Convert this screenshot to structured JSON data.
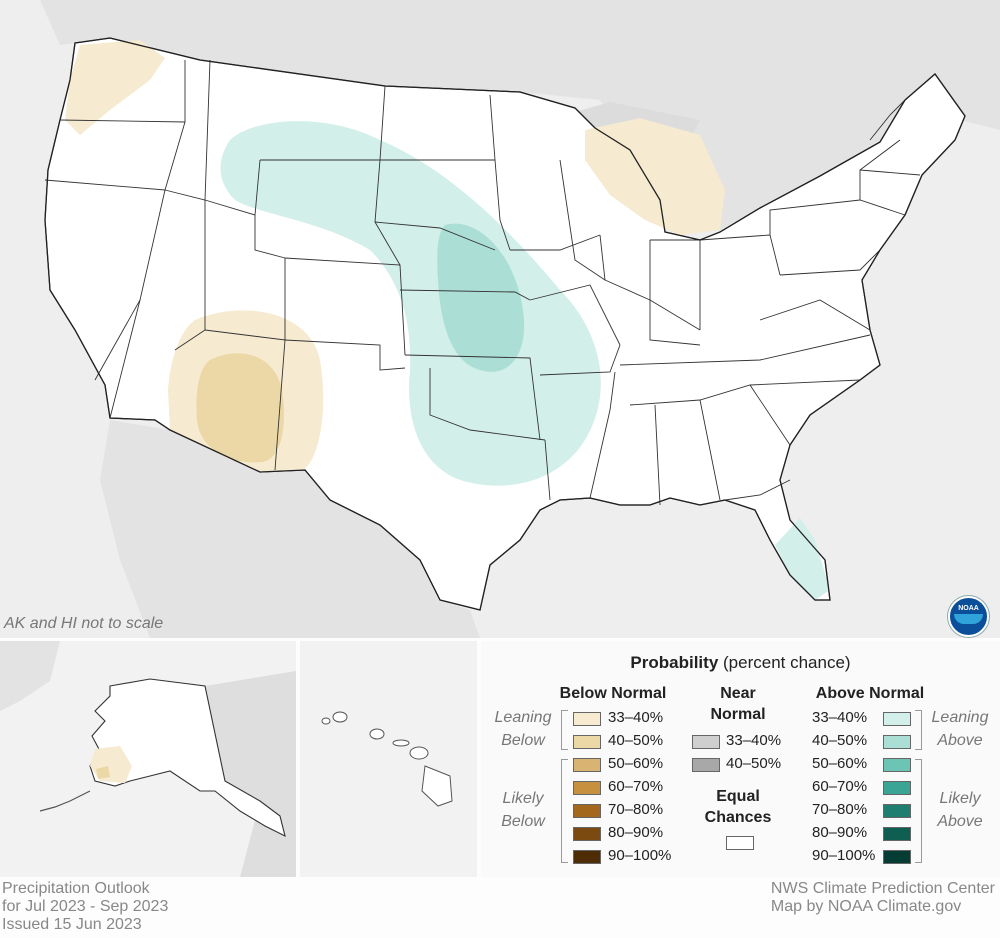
{
  "map": {
    "inset_note": "AK and HI not to scale",
    "logo_text": "NOAA"
  },
  "legend": {
    "title_bold": "Probability",
    "title_rest": " (percent chance)",
    "below": {
      "header": "Below Normal",
      "leaning_label": [
        "Leaning",
        "Below"
      ],
      "likely_label": [
        "Likely",
        "Below"
      ],
      "rows": [
        {
          "label": "33–40%",
          "color": "#f6ead0"
        },
        {
          "label": "40–50%",
          "color": "#ecd8a6"
        },
        {
          "label": "50–60%",
          "color": "#d9b372"
        },
        {
          "label": "60–70%",
          "color": "#c7903f"
        },
        {
          "label": "70–80%",
          "color": "#a4681d"
        },
        {
          "label": "80–90%",
          "color": "#7b4a10"
        },
        {
          "label": "90–100%",
          "color": "#4d2c06"
        }
      ]
    },
    "near": {
      "header": [
        "Near",
        "Normal"
      ],
      "rows": [
        {
          "label": "33–40%",
          "color": "#cfcfcf"
        },
        {
          "label": "40–50%",
          "color": "#a8a8a8"
        }
      ]
    },
    "equal": {
      "header": [
        "Equal",
        "Chances"
      ],
      "color": "#ffffff"
    },
    "above": {
      "header": "Above Normal",
      "leaning_label": [
        "Leaning",
        "Above"
      ],
      "likely_label": [
        "Likely",
        "Above"
      ],
      "rows": [
        {
          "label": "33–40%",
          "color": "#d3efe9"
        },
        {
          "label": "40–50%",
          "color": "#abdfd5"
        },
        {
          "label": "50–60%",
          "color": "#6cc4b4"
        },
        {
          "label": "60–70%",
          "color": "#3aa595"
        },
        {
          "label": "70–80%",
          "color": "#1e7f71"
        },
        {
          "label": "80–90%",
          "color": "#0e5e51"
        },
        {
          "label": "90–100%",
          "color": "#053c33"
        }
      ]
    }
  },
  "footer": {
    "title": "Precipitation Outlook",
    "period": "for Jul 2023 - Sep 2023",
    "issued": "Issued 15 Jun 2023",
    "credit1": "NWS Climate Prediction Center",
    "credit2": "Map by NOAA Climate.gov"
  }
}
